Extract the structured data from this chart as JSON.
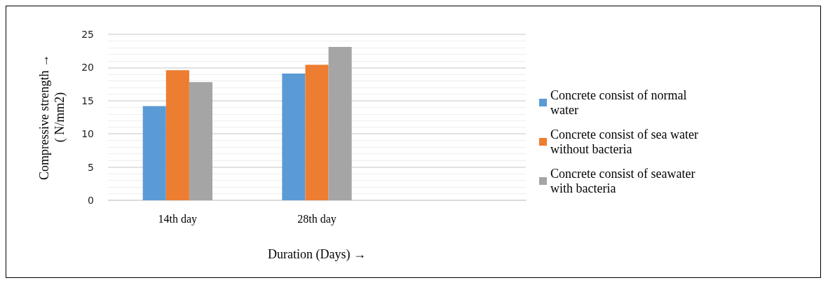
{
  "chart_data": {
    "type": "bar",
    "xlabel": "Duration (Days) →",
    "ylabel": "Compressive strength →\n( N/mm2)",
    "categories": [
      "14th day",
      "28th day",
      null
    ],
    "series": [
      {
        "name": "Concrete consist of normal water",
        "color": "#5b9bd5",
        "values": [
          14.2,
          19.1,
          null
        ]
      },
      {
        "name": "Concrete consist of sea water without bacteria",
        "color": "#ed7d31",
        "values": [
          19.6,
          20.4,
          null
        ]
      },
      {
        "name": "Concrete consist of seawater with bacteria",
        "color": "#a5a5a5",
        "values": [
          17.8,
          23.1,
          null
        ]
      }
    ],
    "ylim": [
      0,
      25
    ],
    "yticks": [
      0,
      5,
      10,
      15,
      20,
      25
    ],
    "grid": "y",
    "legend": "right"
  }
}
